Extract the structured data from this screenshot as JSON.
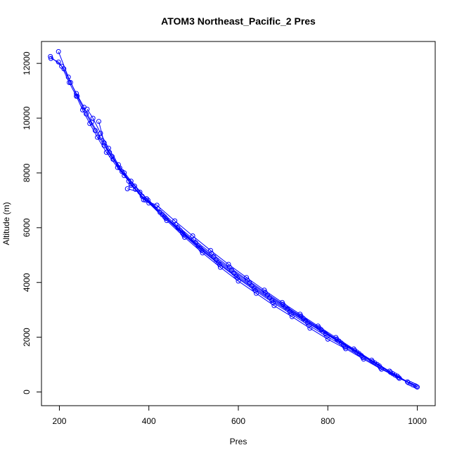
{
  "chart_data": {
    "type": "line",
    "title": "ATOM3 Northeast_Pacific_2 Pres",
    "xlabel": "Pres",
    "ylabel": "Altitude (m)",
    "xlim": [
      160,
      1040
    ],
    "ylim": [
      -500,
      12800
    ],
    "x_ticks": [
      200,
      400,
      600,
      800,
      1000
    ],
    "y_ticks": [
      0,
      2000,
      4000,
      6000,
      8000,
      10000,
      12000
    ],
    "x_tick_labels": [
      "200",
      "400",
      "600",
      "800",
      "1000"
    ],
    "y_tick_labels": [
      "0",
      "2000",
      "4000",
      "6000",
      "8000",
      "10000",
      "12000"
    ],
    "grid": false,
    "legend": "none",
    "series_color": "#0000ff",
    "series": [
      {
        "values": [
          [
            1000,
            180
          ],
          [
            960,
            500
          ],
          [
            920,
            830
          ],
          [
            880,
            1200
          ],
          [
            840,
            1580
          ],
          [
            800,
            1930
          ],
          [
            760,
            2330
          ],
          [
            720,
            2750
          ],
          [
            680,
            3150
          ],
          [
            640,
            3600
          ],
          [
            600,
            4050
          ],
          [
            560,
            4550
          ],
          [
            520,
            5080
          ],
          [
            480,
            5650
          ],
          [
            440,
            6260
          ],
          [
            400,
            6900
          ],
          [
            370,
            7400
          ],
          [
            345,
            7900
          ],
          [
            320,
            8500
          ],
          [
            300,
            9000
          ],
          [
            280,
            9550
          ],
          [
            260,
            10150
          ],
          [
            240,
            10800
          ],
          [
            220,
            11500
          ],
          [
            198,
            12430
          ]
        ]
      },
      {
        "values": [
          [
            998,
            200
          ],
          [
            958,
            530
          ],
          [
            918,
            880
          ],
          [
            878,
            1260
          ],
          [
            838,
            1640
          ],
          [
            798,
            2030
          ],
          [
            758,
            2430
          ],
          [
            718,
            2850
          ],
          [
            678,
            3260
          ],
          [
            638,
            3700
          ],
          [
            598,
            4160
          ],
          [
            558,
            4650
          ],
          [
            518,
            5170
          ],
          [
            478,
            5730
          ],
          [
            438,
            6340
          ],
          [
            398,
            7000
          ],
          [
            368,
            7520
          ],
          [
            340,
            8050
          ],
          [
            318,
            8600
          ],
          [
            300,
            9100
          ],
          [
            288,
            9880
          ]
        ]
      },
      {
        "values": [
          [
            995,
            230
          ],
          [
            955,
            580
          ],
          [
            915,
            950
          ],
          [
            875,
            1330
          ],
          [
            835,
            1720
          ],
          [
            795,
            2120
          ],
          [
            755,
            2520
          ],
          [
            715,
            2930
          ],
          [
            675,
            3340
          ],
          [
            635,
            3780
          ],
          [
            595,
            4230
          ],
          [
            555,
            4720
          ],
          [
            515,
            5240
          ],
          [
            475,
            5800
          ],
          [
            435,
            6400
          ],
          [
            395,
            7060
          ],
          [
            360,
            7700
          ],
          [
            332,
            8300
          ],
          [
            310,
            8900
          ],
          [
            292,
            9450
          ],
          [
            275,
            10000
          ],
          [
            262,
            10330
          ]
        ]
      },
      {
        "values": [
          [
            990,
            260
          ],
          [
            950,
            620
          ],
          [
            910,
            1010
          ],
          [
            870,
            1400
          ],
          [
            830,
            1790
          ],
          [
            790,
            2190
          ],
          [
            750,
            2600
          ],
          [
            710,
            3020
          ],
          [
            670,
            3440
          ],
          [
            630,
            3880
          ],
          [
            590,
            4340
          ],
          [
            550,
            4830
          ],
          [
            510,
            5350
          ],
          [
            470,
            5900
          ],
          [
            430,
            6480
          ],
          [
            392,
            7010
          ],
          [
            360,
            7550
          ],
          [
            345,
            8000
          ]
        ]
      },
      {
        "values": [
          [
            985,
            300
          ],
          [
            945,
            670
          ],
          [
            905,
            1060
          ],
          [
            865,
            1460
          ],
          [
            825,
            1860
          ],
          [
            785,
            2280
          ],
          [
            745,
            2690
          ],
          [
            705,
            3110
          ],
          [
            665,
            3540
          ],
          [
            625,
            3990
          ],
          [
            585,
            4450
          ],
          [
            545,
            4940
          ],
          [
            505,
            5450
          ],
          [
            465,
            6000
          ],
          [
            425,
            6560
          ],
          [
            385,
            7150
          ],
          [
            355,
            7700
          ],
          [
            330,
            8200
          ],
          [
            305,
            8750
          ],
          [
            285,
            9300
          ],
          [
            268,
            9800
          ],
          [
            252,
            10300
          ],
          [
            238,
            10800
          ],
          [
            222,
            11300
          ],
          [
            205,
            11900
          ],
          [
            180,
            12250
          ]
        ]
      },
      {
        "values": [
          [
            980,
            340
          ],
          [
            940,
            720
          ],
          [
            900,
            1110
          ],
          [
            860,
            1520
          ],
          [
            820,
            1930
          ],
          [
            780,
            2350
          ],
          [
            740,
            2770
          ],
          [
            700,
            3200
          ],
          [
            660,
            3640
          ],
          [
            620,
            4090
          ],
          [
            580,
            4560
          ],
          [
            540,
            5060
          ],
          [
            500,
            5570
          ],
          [
            460,
            6120
          ],
          [
            420,
            6690
          ],
          [
            380,
            7300
          ],
          [
            352,
            7420
          ]
        ]
      },
      {
        "values": [
          [
            978,
            370
          ],
          [
            938,
            760
          ],
          [
            898,
            1160
          ],
          [
            858,
            1570
          ],
          [
            818,
            1990
          ],
          [
            778,
            2410
          ],
          [
            738,
            2840
          ],
          [
            698,
            3270
          ],
          [
            658,
            3720
          ],
          [
            618,
            4180
          ],
          [
            578,
            4660
          ],
          [
            538,
            5170
          ],
          [
            498,
            5700
          ],
          [
            458,
            6250
          ],
          [
            418,
            6820
          ],
          [
            388,
            7020
          ],
          [
            360,
            7600
          ],
          [
            335,
            8180
          ],
          [
            312,
            8750
          ],
          [
            292,
            9300
          ],
          [
            272,
            9850
          ],
          [
            255,
            10400
          ],
          [
            238,
            10900
          ],
          [
            225,
            11300
          ],
          [
            210,
            11800
          ],
          [
            198,
            12050
          ],
          [
            181,
            12180
          ]
        ]
      }
    ]
  }
}
